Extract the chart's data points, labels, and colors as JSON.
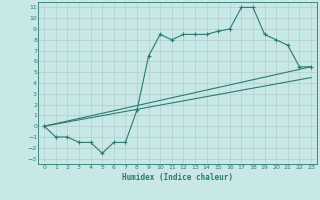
{
  "xlabel": "Humidex (Indice chaleur)",
  "ylabel": "",
  "bg_color": "#c8e8e8",
  "line_color": "#2d7a6e",
  "xlim": [
    -0.5,
    23.5
  ],
  "ylim": [
    -3.5,
    11.5
  ],
  "xticks": [
    0,
    1,
    2,
    3,
    4,
    5,
    6,
    7,
    8,
    9,
    10,
    11,
    12,
    13,
    14,
    15,
    16,
    17,
    18,
    19,
    20,
    21,
    22,
    23
  ],
  "yticks": [
    -3,
    -2,
    -1,
    0,
    1,
    2,
    3,
    4,
    5,
    6,
    7,
    8,
    9,
    10,
    11
  ],
  "line1_x": [
    0,
    1,
    2,
    3,
    4,
    5,
    6,
    7,
    8,
    9,
    10,
    11,
    12,
    13,
    14,
    15,
    16,
    17,
    18,
    19,
    20,
    21,
    22,
    23
  ],
  "line1_y": [
    0,
    -1,
    -1,
    -1.5,
    -1.5,
    -2.5,
    -1.5,
    -1.5,
    1.5,
    6.5,
    8.5,
    8.0,
    8.5,
    8.5,
    8.5,
    8.8,
    9.0,
    11.0,
    11.0,
    8.5,
    8.0,
    7.5,
    5.5,
    5.5
  ],
  "line2_x": [
    0,
    23
  ],
  "line2_y": [
    0,
    5.5
  ],
  "line3_x": [
    0,
    23
  ],
  "line3_y": [
    0,
    4.5
  ],
  "grid_color": "#b0cece"
}
